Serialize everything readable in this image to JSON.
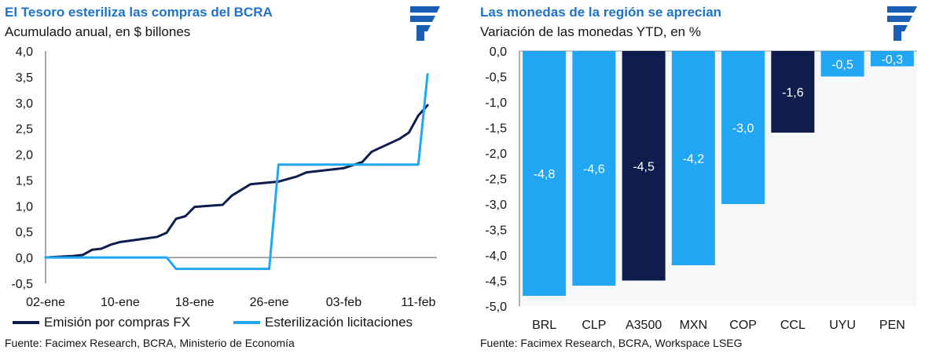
{
  "colors": {
    "navy": "#0e1c4e",
    "light_blue": "#21a6f3",
    "title_blue": "#1e73c8"
  },
  "left": {
    "title": "El Tesoro esteriliza las compras del BCRA",
    "subtitle": "Acumulado anual, en $ billones",
    "source": "Fuente: Facimex Research, BCRA, Ministerio de Economía"
  },
  "right": {
    "title": "Las monedas de la región se aprecian",
    "subtitle": "Variación de las monedas YTD, en %",
    "source": "Fuente: Facimex Research, BCRA, Workspace LSEG"
  },
  "chart_data": [
    {
      "type": "line",
      "title": "El Tesoro esteriliza las compras del BCRA",
      "subtitle": "Acumulado anual, en $ billones",
      "x_tick_labels": [
        "02-ene",
        "10-ene",
        "18-ene",
        "26-ene",
        "03-feb",
        "11-feb"
      ],
      "y_tick_labels": [
        "4,0",
        "3,5",
        "3,0",
        "2,5",
        "2,0",
        "1,5",
        "1,0",
        "0,5",
        "0,0",
        "-0,5"
      ],
      "ylim": [
        -0.5,
        4.0
      ],
      "x_unit": "days since 02-ene",
      "xlim": [
        0,
        42
      ],
      "legend_position": "bottom",
      "series": [
        {
          "name": "Emisión por compras FX",
          "color": "#0e1c4e",
          "points": [
            [
              0,
              0
            ],
            [
              3,
              0.03
            ],
            [
              4,
              0.05
            ],
            [
              5,
              0.15
            ],
            [
              6,
              0.17
            ],
            [
              7,
              0.25
            ],
            [
              8,
              0.3
            ],
            [
              10,
              0.35
            ],
            [
              12,
              0.4
            ],
            [
              13,
              0.48
            ],
            [
              14,
              0.75
            ],
            [
              15,
              0.8
            ],
            [
              16,
              0.98
            ],
            [
              19,
              1.02
            ],
            [
              20,
              1.2
            ],
            [
              22,
              1.42
            ],
            [
              25,
              1.47
            ],
            [
              27,
              1.57
            ],
            [
              28,
              1.65
            ],
            [
              31,
              1.71
            ],
            [
              32,
              1.73
            ],
            [
              34,
              1.85
            ],
            [
              35,
              2.05
            ],
            [
              38,
              2.3
            ],
            [
              39,
              2.42
            ],
            [
              40,
              2.75
            ],
            [
              41,
              2.95
            ]
          ]
        },
        {
          "name": "Esterilización licitaciones",
          "color": "#21a6f3",
          "points": [
            [
              0,
              0
            ],
            [
              13,
              0
            ],
            [
              14,
              -0.22
            ],
            [
              24,
              -0.22
            ],
            [
              25,
              1.8
            ],
            [
              40,
              1.8
            ],
            [
              41,
              3.55
            ]
          ]
        }
      ]
    },
    {
      "type": "bar",
      "title": "Las monedas de la región se aprecian",
      "subtitle": "Variación de las monedas YTD, en %",
      "categories": [
        "BRL",
        "CLP",
        "A3500",
        "MXN",
        "COP",
        "CCL",
        "UYU",
        "PEN"
      ],
      "values": [
        -4.8,
        -4.6,
        -4.5,
        -4.2,
        -3.0,
        -1.6,
        -0.5,
        -0.3
      ],
      "value_labels": [
        "-4,8",
        "-4,6",
        "-4,5",
        "-4,2",
        "-3,0",
        "-1,6",
        "-0,5",
        "-0,3"
      ],
      "bar_colors": [
        "#21a6f3",
        "#21a6f3",
        "#0e1c4e",
        "#21a6f3",
        "#21a6f3",
        "#0e1c4e",
        "#21a6f3",
        "#21a6f3"
      ],
      "y_tick_labels": [
        "0,0",
        "-0,5",
        "-1,0",
        "-1,5",
        "-2,0",
        "-2,5",
        "-3,0",
        "-3,5",
        "-4,0",
        "-4,5",
        "-5,0"
      ],
      "ylim": [
        -5.0,
        0.0
      ]
    }
  ]
}
